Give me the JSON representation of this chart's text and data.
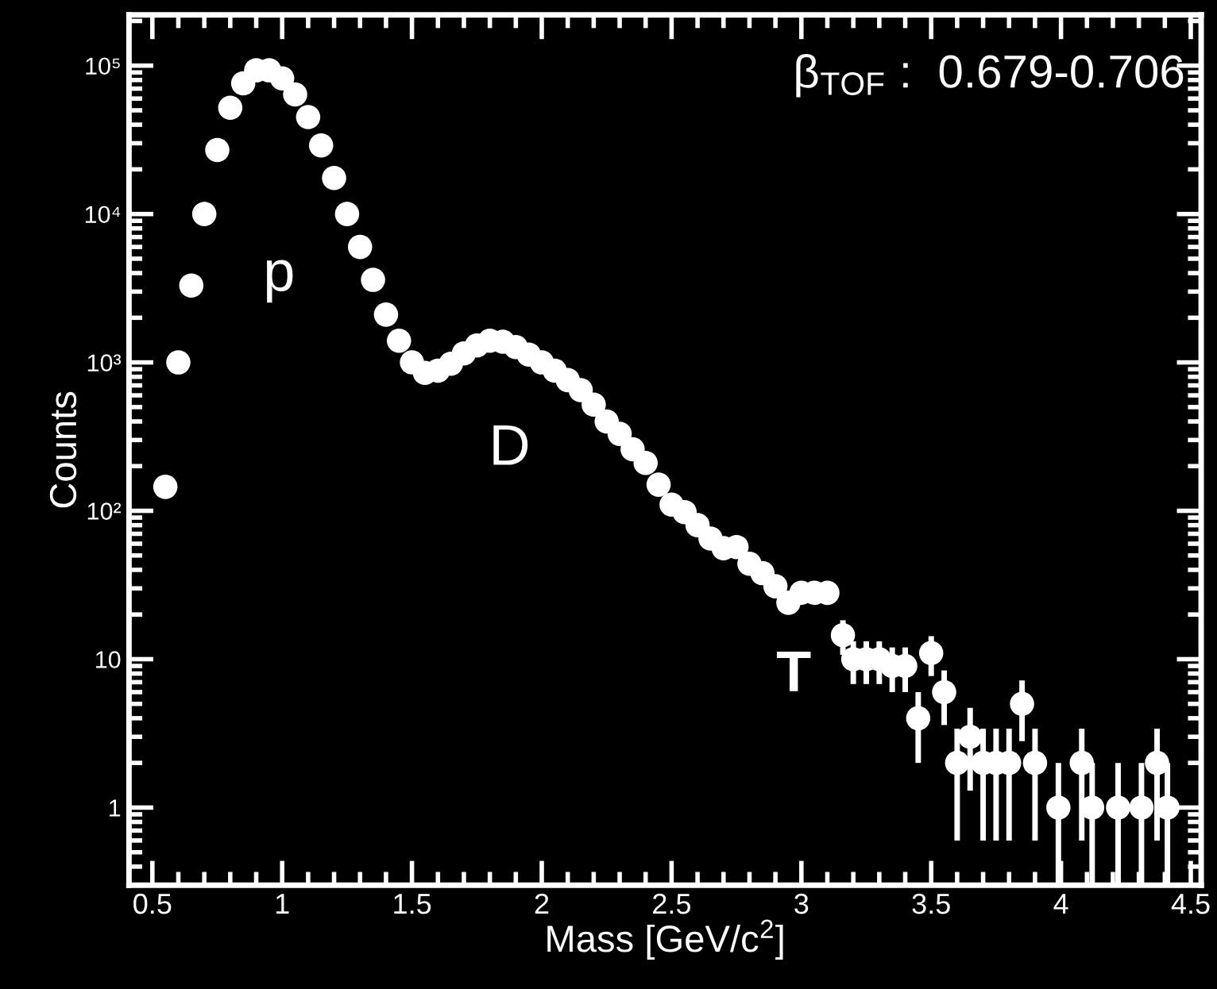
{
  "chart_data": {
    "type": "scatter",
    "xlabel": "Mass [GeV/c$^{2}$]",
    "ylabel": "Counts",
    "x": [
      0.55,
      0.6,
      0.65,
      0.7,
      0.75,
      0.8,
      0.85,
      0.9,
      0.95,
      1.0,
      1.05,
      1.1,
      1.15,
      1.2,
      1.25,
      1.3,
      1.35,
      1.4,
      1.45,
      1.5,
      1.55,
      1.6,
      1.65,
      1.7,
      1.75,
      1.8,
      1.85,
      1.9,
      1.95,
      2.0,
      2.05,
      2.1,
      2.15,
      2.2,
      2.25,
      2.3,
      2.35,
      2.4,
      2.45,
      2.5,
      2.55,
      2.6,
      2.65,
      2.7,
      2.75,
      2.8,
      2.85,
      2.9,
      2.95,
      3.0,
      3.05,
      3.1,
      3.16,
      3.2,
      3.25,
      3.3,
      3.35,
      3.4,
      3.45,
      3.5,
      3.55,
      3.6,
      3.65,
      3.7,
      3.75,
      3.8,
      3.85,
      3.9,
      3.99,
      4.08,
      4.12,
      4.22,
      4.31,
      4.37,
      4.41
    ],
    "series": [
      {
        "color": "#ffffff",
        "values": [
          145,
          1000,
          3300,
          10000,
          27000,
          52000,
          76000,
          93000,
          93000,
          82000,
          64000,
          45000,
          29000,
          17500,
          10000,
          6000,
          3600,
          2100,
          1400,
          1000,
          850,
          880,
          980,
          1150,
          1300,
          1400,
          1380,
          1270,
          1130,
          1000,
          880,
          760,
          650,
          520,
          400,
          330,
          260,
          210,
          150,
          110,
          98,
          80,
          65,
          56,
          57,
          44,
          38,
          31,
          24,
          28,
          28,
          28,
          14.5,
          10,
          10,
          10,
          9,
          9,
          4,
          11,
          6,
          2,
          3,
          2,
          2,
          2,
          5,
          2,
          1,
          2,
          1,
          1,
          1,
          2,
          1
        ],
        "errors": [
          null,
          null,
          null,
          null,
          null,
          null,
          null,
          null,
          null,
          null,
          null,
          null,
          null,
          null,
          null,
          null,
          null,
          null,
          null,
          null,
          null,
          null,
          null,
          null,
          null,
          null,
          null,
          null,
          null,
          null,
          null,
          null,
          null,
          null,
          null,
          null,
          null,
          null,
          null,
          null,
          null,
          null,
          null,
          null,
          null,
          null,
          null,
          null,
          null,
          null,
          null,
          null,
          3.8,
          3.2,
          3.2,
          3.2,
          3,
          3,
          2,
          3.3,
          2.4,
          1.4,
          1.7,
          1.4,
          1.4,
          1.4,
          2.2,
          1.4,
          [
            0.3,
            2
          ],
          1.4,
          [
            0.3,
            2
          ],
          [
            0.3,
            2
          ],
          [
            0.3,
            2
          ],
          1.4,
          [
            0.3,
            2
          ]
        ]
      }
    ],
    "log": "y",
    "xlim": [
      0.41,
      4.54
    ],
    "ylim": [
      0.3,
      220000
    ],
    "xticks": [
      0.5,
      1,
      1.5,
      2,
      2.5,
      3,
      3.5,
      4,
      4.5
    ],
    "yticks": [
      1,
      10,
      {
        "value": 100,
        "label": "10²"
      },
      {
        "value": 1000,
        "label": "10³"
      },
      {
        "value": 10000,
        "label": "10⁴"
      },
      {
        "value": 100000,
        "label": "10⁵"
      }
    ],
    "marker": "circle",
    "grid": false,
    "legend": false,
    "annotations": [
      "p",
      "D",
      "T",
      "β$_{TOF}$ :  0.679-0.706"
    ]
  }
}
